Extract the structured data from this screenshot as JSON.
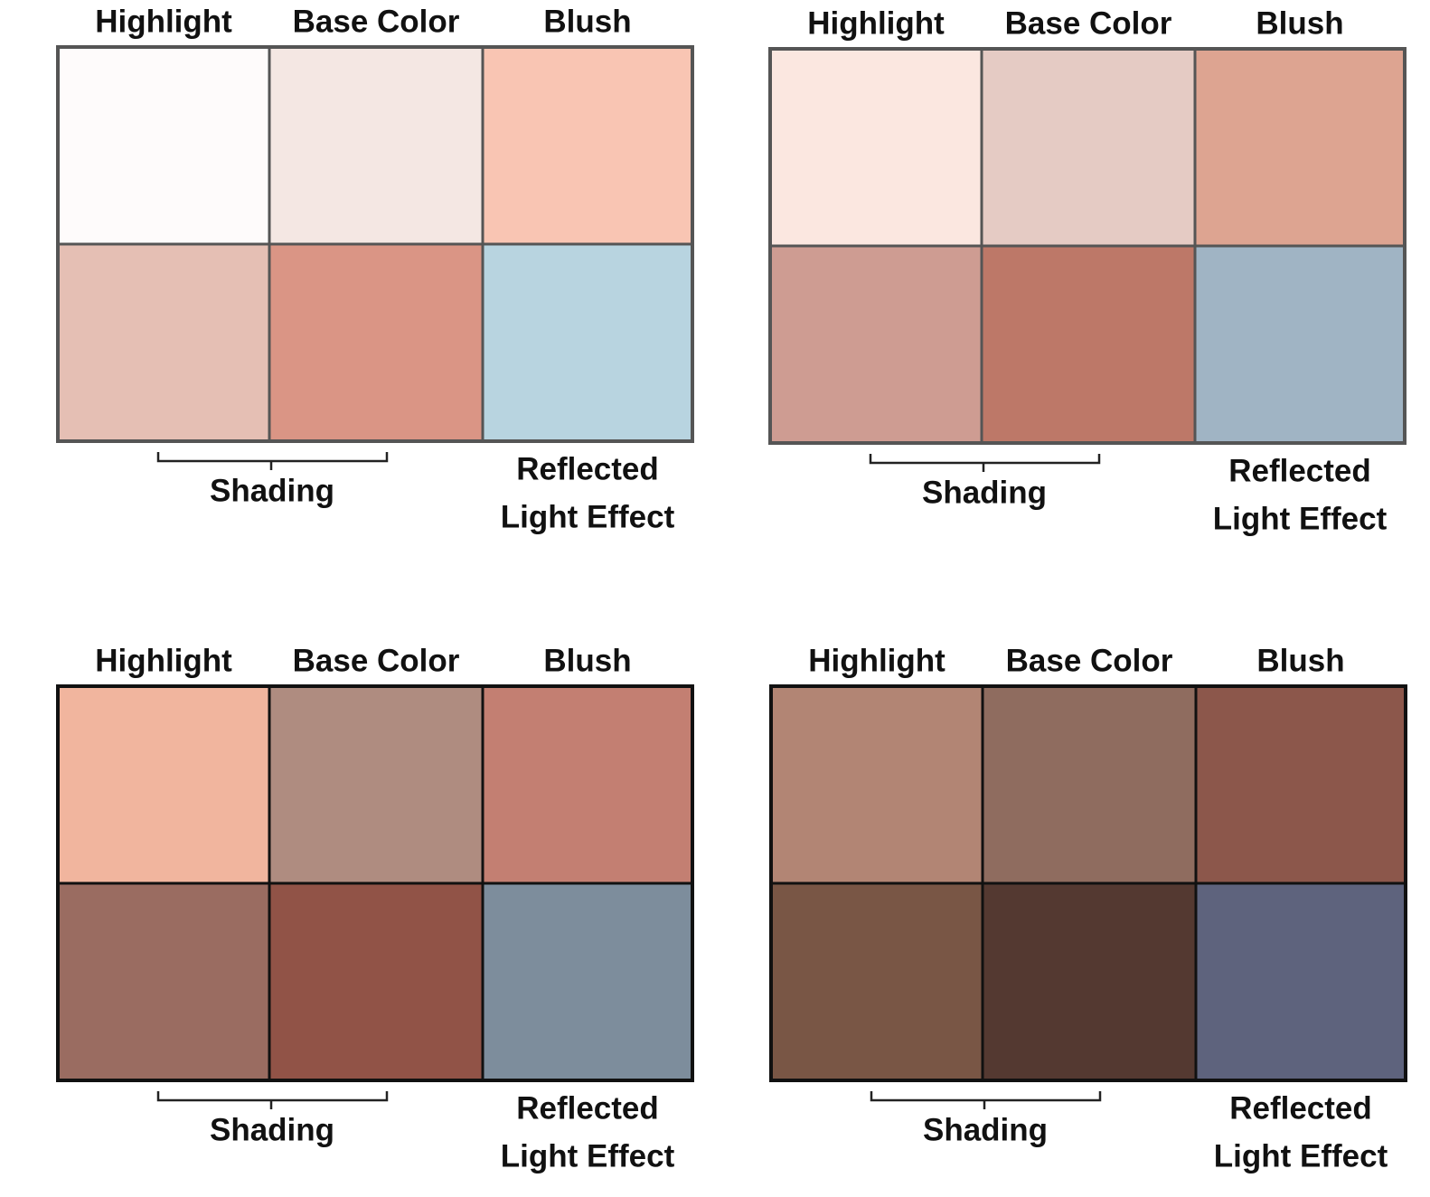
{
  "palettes": [
    {
      "labels": [
        "Highlight",
        "Base Color",
        "Blush"
      ],
      "swatches": [
        "#fefbfb",
        "#f4e7e3",
        "#f9c5b3",
        "#e5bfb4",
        "#da9585",
        "#b8d4e0"
      ],
      "border": "#555555",
      "shading_label": "Shading",
      "reflected_label": [
        "Reflected",
        "Light Effect"
      ]
    },
    {
      "labels": [
        "Highlight",
        "Base Color",
        "Blush"
      ],
      "swatches": [
        "#fbe7e0",
        "#e5cbc4",
        "#dda491",
        "#ce9c92",
        "#bd7868",
        "#a0b4c4"
      ],
      "border": "#555555",
      "shading_label": "Shading",
      "reflected_label": [
        "Reflected",
        "Light Effect"
      ]
    },
    {
      "labels": [
        "Highlight",
        "Base Color",
        "Blush"
      ],
      "swatches": [
        "#f1b59e",
        "#af8c80",
        "#c37f72",
        "#9a6c61",
        "#915347",
        "#7d8d9c"
      ],
      "border": "#111111",
      "shading_label": "Shading",
      "reflected_label": [
        "Reflected",
        "Light Effect"
      ]
    },
    {
      "labels": [
        "Highlight",
        "Base Color",
        "Blush"
      ],
      "swatches": [
        "#b28574",
        "#8f6c5f",
        "#8c574b",
        "#795645",
        "#543931",
        "#5e637d"
      ],
      "border": "#111111",
      "shading_label": "Shading",
      "reflected_label": [
        "Reflected",
        "Light Effect"
      ]
    }
  ]
}
